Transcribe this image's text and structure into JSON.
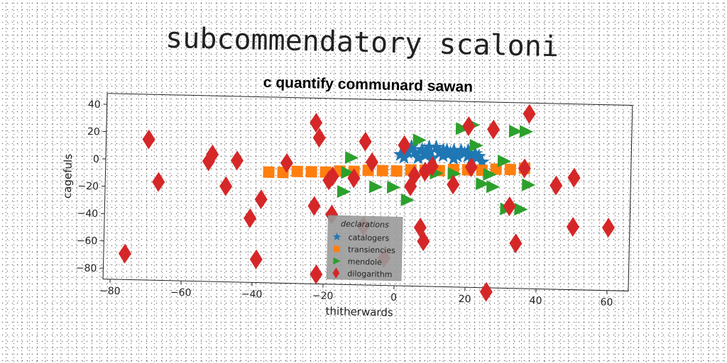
{
  "chart_data": {
    "type": "scatter",
    "suptitle": "subcommendatory scaloni",
    "title": "c quantify communard sawan",
    "xlabel": "thitherwards",
    "ylabel": "cagefuls",
    "xlim": [
      -82,
      66
    ],
    "ylim": [
      -88,
      48
    ],
    "xticks": [
      -80,
      -60,
      -40,
      -20,
      0,
      20,
      40,
      60
    ],
    "yticks": [
      40,
      20,
      0,
      -20,
      -40,
      -60,
      -80
    ],
    "grid": false,
    "legend": {
      "title": "declarations",
      "placement": "lower-center"
    },
    "series": [
      {
        "name": "catalogers",
        "marker": "star",
        "color": "#1f77b4",
        "points": [
          [
            1,
            8
          ],
          [
            3,
            10
          ],
          [
            4,
            14
          ],
          [
            5,
            10
          ],
          [
            6,
            6
          ],
          [
            7,
            12
          ],
          [
            8,
            8
          ],
          [
            9,
            10
          ],
          [
            10,
            6
          ],
          [
            11,
            14
          ],
          [
            12,
            10
          ],
          [
            13,
            8
          ],
          [
            14,
            12
          ],
          [
            15,
            10
          ],
          [
            16,
            6
          ],
          [
            17,
            8
          ],
          [
            18,
            12
          ],
          [
            19,
            10
          ],
          [
            20,
            8
          ],
          [
            21,
            6
          ],
          [
            22,
            10
          ],
          [
            23,
            8
          ],
          [
            24,
            4
          ],
          [
            2,
            6
          ],
          [
            9,
            14
          ],
          [
            13,
            12
          ],
          [
            16,
            12
          ],
          [
            20,
            12
          ]
        ]
      },
      {
        "name": "transiencies",
        "marker": "square",
        "color": "#ff7f0e",
        "points": [
          [
            -36,
            -7
          ],
          [
            -32,
            -7
          ],
          [
            -28,
            -6
          ],
          [
            -24,
            -6
          ],
          [
            -20,
            -6
          ],
          [
            -16,
            -5
          ],
          [
            -12,
            -5
          ],
          [
            -8,
            -4
          ],
          [
            -4,
            -4
          ],
          [
            0,
            -4
          ],
          [
            4,
            -3
          ],
          [
            8,
            -3
          ],
          [
            12,
            -3
          ],
          [
            16,
            -2
          ],
          [
            20,
            -2
          ],
          [
            24,
            -2
          ],
          [
            28,
            -1
          ],
          [
            32,
            -1
          ],
          [
            36,
            0
          ]
        ]
      },
      {
        "name": "mendole",
        "marker": "triangle-right",
        "color": "#2ca02c",
        "points": [
          [
            -13,
            5
          ],
          [
            -14,
            -6
          ],
          [
            -15,
            -20
          ],
          [
            -6,
            -16
          ],
          [
            -1,
            -16
          ],
          [
            3,
            -25
          ],
          [
            6,
            19
          ],
          [
            11,
            -5
          ],
          [
            16,
            -5
          ],
          [
            18,
            28
          ],
          [
            21,
            31
          ],
          [
            22,
            16
          ],
          [
            24,
            -12
          ],
          [
            26,
            -5
          ],
          [
            27,
            -14
          ],
          [
            30,
            5
          ],
          [
            31,
            -30
          ],
          [
            33,
            27
          ],
          [
            35,
            -30
          ],
          [
            36,
            27
          ],
          [
            37,
            -12
          ]
        ]
      },
      {
        "name": "dilogarithm",
        "marker": "diamond",
        "color": "#d62728",
        "points": [
          [
            -76,
            -69
          ],
          [
            -70,
            15
          ],
          [
            -67,
            -16
          ],
          [
            -53,
            0
          ],
          [
            -52,
            5
          ],
          [
            -48,
            -18
          ],
          [
            -45,
            1
          ],
          [
            -41,
            -41
          ],
          [
            -38,
            -27
          ],
          [
            -39,
            -71
          ],
          [
            -31,
            0
          ],
          [
            -23,
            30
          ],
          [
            -22,
            19
          ],
          [
            -23,
            -31
          ],
          [
            -22,
            -81
          ],
          [
            -19,
            -12
          ],
          [
            -18,
            -9
          ],
          [
            -18,
            -37
          ],
          [
            -12,
            -10
          ],
          [
            -9,
            -45
          ],
          [
            -9,
            17
          ],
          [
            -7,
            2
          ],
          [
            -3,
            -68
          ],
          [
            2,
            15
          ],
          [
            4,
            -15
          ],
          [
            5,
            -7
          ],
          [
            7,
            -45
          ],
          [
            8,
            -55
          ],
          [
            8,
            -4
          ],
          [
            10,
            0
          ],
          [
            16,
            -13
          ],
          [
            20,
            30
          ],
          [
            21,
            0
          ],
          [
            27,
            28
          ],
          [
            26,
            -91
          ],
          [
            32,
            -28
          ],
          [
            34,
            -55
          ],
          [
            36,
            0
          ],
          [
            37,
            40
          ],
          [
            45,
            -12
          ],
          [
            50,
            -6
          ],
          [
            50,
            -42
          ],
          [
            60,
            -42
          ]
        ]
      }
    ]
  }
}
